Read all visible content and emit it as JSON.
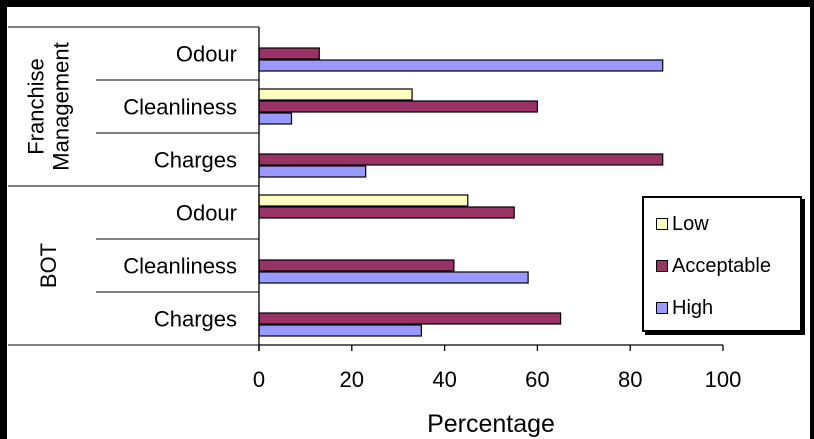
{
  "chart_data": {
    "type": "bar",
    "orientation": "horizontal",
    "xlabel": "Percentage",
    "xlim": [
      0,
      100
    ],
    "xticks": [
      0,
      20,
      40,
      60,
      80,
      100
    ],
    "groups": [
      {
        "name": "Franchise Management",
        "categories": [
          {
            "label": "Odour",
            "values": {
              "Low": 0,
              "Acceptable": 13,
              "High": 87
            }
          },
          {
            "label": "Cleanliness",
            "values": {
              "Low": 33,
              "Acceptable": 60,
              "High": 7
            }
          },
          {
            "label": "Charges",
            "values": {
              "Low": 0,
              "Acceptable": 87,
              "High": 23
            }
          }
        ]
      },
      {
        "name": "BOT",
        "categories": [
          {
            "label": "Odour",
            "values": {
              "Low": 45,
              "Acceptable": 55,
              "High": 0
            }
          },
          {
            "label": "Cleanliness",
            "values": {
              "Low": 0,
              "Acceptable": 42,
              "High": 58
            }
          },
          {
            "label": "Charges",
            "values": {
              "Low": 0,
              "Acceptable": 65,
              "High": 35
            }
          }
        ]
      }
    ],
    "series": [
      {
        "name": "Low",
        "color": "#FFFFC0"
      },
      {
        "name": "Acceptable",
        "color": "#993366"
      },
      {
        "name": "High",
        "color": "#9999FF"
      }
    ],
    "legend_position": "right",
    "grid": false
  }
}
